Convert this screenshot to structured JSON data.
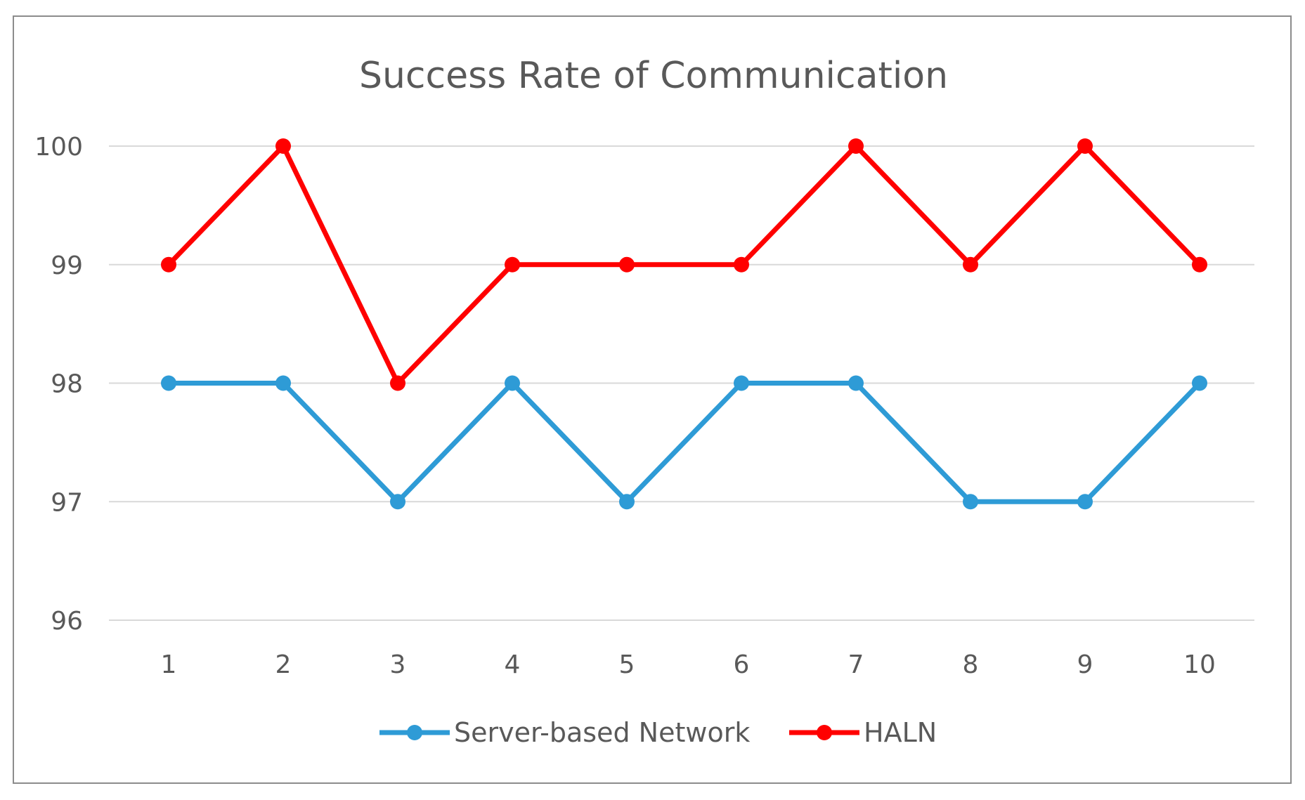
{
  "chart_data": {
    "type": "line",
    "title": "Success Rate of Communication",
    "xlabel": "",
    "ylabel": "",
    "categories": [
      "1",
      "2",
      "3",
      "4",
      "5",
      "6",
      "7",
      "8",
      "9",
      "10"
    ],
    "yticks": [
      "96",
      "97",
      "98",
      "99",
      "100"
    ],
    "ylim": [
      96,
      100
    ],
    "grid": true,
    "legend_position": "bottom",
    "series": [
      {
        "name": "Server-based Network",
        "color": "#2e9bd6",
        "values": [
          98,
          98,
          97,
          98,
          97,
          98,
          98,
          97,
          97,
          98
        ]
      },
      {
        "name": "HALN",
        "color": "#ff0000",
        "values": [
          99,
          100,
          98,
          99,
          99,
          99,
          100,
          99,
          100,
          99
        ]
      }
    ]
  }
}
